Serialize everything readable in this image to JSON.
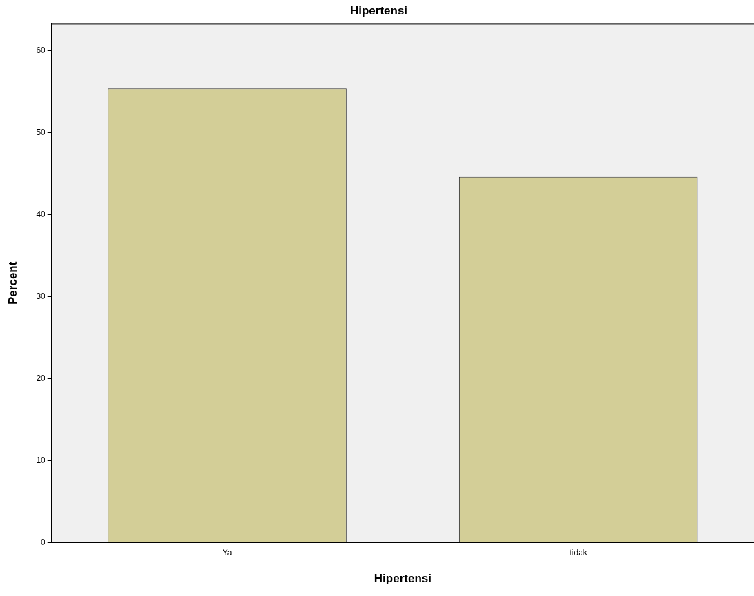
{
  "chart_data": {
    "type": "bar",
    "title": "Hipertensi",
    "xlabel": "Hipertensi",
    "ylabel": "Percent",
    "categories": [
      "Ya",
      "tidak"
    ],
    "values": [
      55.4,
      44.6
    ],
    "color": "#d3ce97",
    "ylim": [
      0,
      63.3
    ],
    "yticks": [
      0,
      10,
      20,
      30,
      40,
      50,
      60
    ],
    "grid": false,
    "legend": false
  }
}
